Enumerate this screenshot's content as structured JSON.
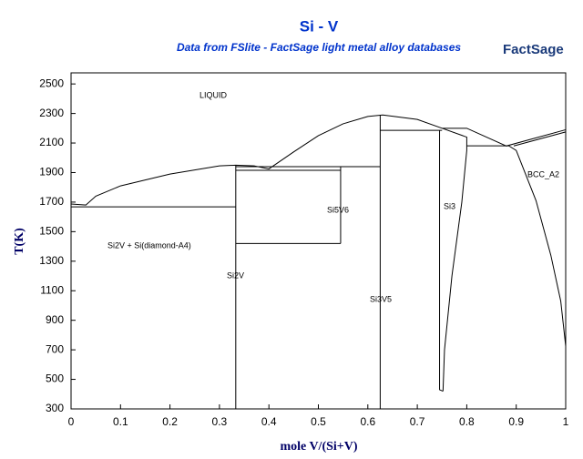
{
  "chart_data": {
    "type": "line",
    "title": "Si - V",
    "subtitle": "Data from FSlite - FactSage light metal alloy databases",
    "logo": "FactSage",
    "x_label": "mole V/(Si+V)",
    "y_label": "T(K)",
    "xlim": [
      0,
      1
    ],
    "ylim": [
      300,
      2575
    ],
    "xticks": [
      0,
      0.1,
      0.2,
      0.3,
      0.4,
      0.5,
      0.6,
      0.7,
      0.8,
      0.9,
      1
    ],
    "yticks": [
      300,
      500,
      700,
      900,
      1100,
      1300,
      1500,
      1700,
      1900,
      2100,
      2300,
      2500
    ],
    "annotations": [
      "LIQUID",
      "Si2V + Si(diamond-A4)",
      "Si2V",
      "Si5V6",
      "Si3V5",
      "Si3",
      "BCC_A2"
    ],
    "color": "#000000",
    "series": [
      {
        "x": [
          0,
          0.03,
          0.05,
          0.1,
          0.2,
          0.3,
          0.333,
          0.37,
          0.4,
          0.45,
          0.5,
          0.55,
          0.6,
          0.63,
          0.7,
          0.75
        ],
        "values": [
          1687,
          1680,
          1740,
          1810,
          1890,
          1945,
          1950,
          1945,
          1925,
          2040,
          2150,
          2230,
          2280,
          2290,
          2260,
          2200
        ]
      },
      {
        "x": [
          0,
          0.333
        ],
        "values": [
          1668,
          1668
        ]
      },
      {
        "x": [
          0.333,
          0.333
        ],
        "values": [
          300,
          1950
        ]
      },
      {
        "x": [
          0.333,
          0.545
        ],
        "values": [
          1420,
          1420
        ]
      },
      {
        "x": [
          0.545,
          0.545
        ],
        "values": [
          1420,
          1940
        ]
      },
      {
        "x": [
          0.333,
          0.625
        ],
        "values": [
          1940,
          1940
        ]
      },
      {
        "x": [
          0.333,
          0.545
        ],
        "values": [
          1915,
          1915
        ]
      },
      {
        "x": [
          0.625,
          0.625
        ],
        "values": [
          300,
          2290
        ]
      },
      {
        "x": [
          0.625,
          0.75
        ],
        "values": [
          2186,
          2186
        ]
      },
      {
        "x": [
          0.745,
          0.745,
          0.752
        ],
        "values": [
          2186,
          430,
          420
        ]
      },
      {
        "x": [
          0.75,
          0.8,
          0.88,
          1
        ],
        "values": [
          2200,
          2200,
          2080,
          2190
        ]
      },
      {
        "x": [
          0.75,
          0.8,
          0.8,
          0.79,
          0.77,
          0.755,
          0.752
        ],
        "values": [
          2200,
          2140,
          2050,
          1700,
          1200,
          700,
          420
        ]
      },
      {
        "x": [
          0.8,
          0.885
        ],
        "values": [
          2081,
          2081
        ]
      },
      {
        "x": [
          0.895,
          1
        ],
        "values": [
          2080,
          2175
        ]
      },
      {
        "x": [
          0.885,
          0.9,
          0.94,
          0.97,
          0.99,
          1
        ],
        "values": [
          2081,
          2050,
          1710,
          1340,
          1030,
          725
        ]
      }
    ]
  }
}
